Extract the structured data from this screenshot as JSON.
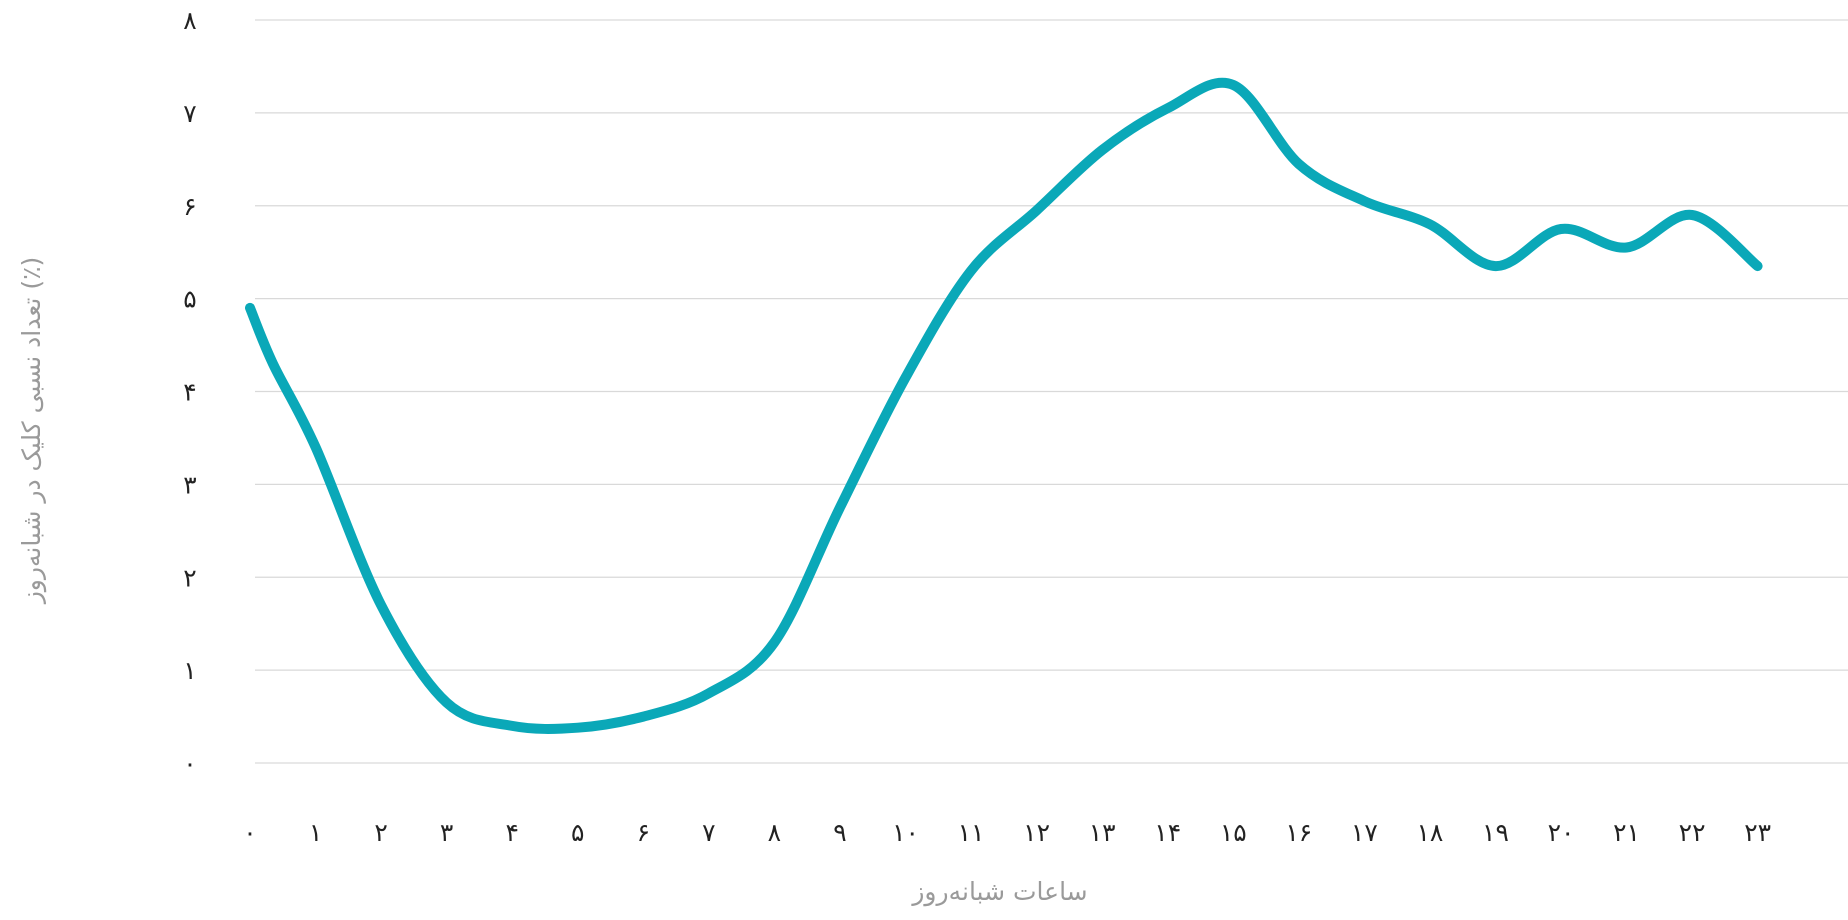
{
  "chart_data": {
    "type": "line",
    "title": "",
    "xlabel": "ساعات شبانه‌روز",
    "ylabel": "تعداد نسبی کلیک در شبانه‌روز (٪)",
    "x_tick_labels": [
      "۰",
      "۱",
      "۲",
      "۳",
      "۴",
      "۵",
      "۶",
      "۷",
      "۸",
      "۹",
      "۱۰",
      "۱۱",
      "۱۲",
      "۱۳",
      "۱۴",
      "۱۵",
      "۱۶",
      "۱۷",
      "۱۸",
      "۱۹",
      "۲۰",
      "۲۱",
      "۲۲",
      "۲۳"
    ],
    "y_tick_labels": [
      "۰",
      "۱",
      "۲",
      "۳",
      "۴",
      "۵",
      "۶",
      "۷",
      "۸"
    ],
    "ylim": [
      0,
      8
    ],
    "grid": true,
    "series": [
      {
        "color": "#0aa8b8",
        "x": [
          0,
          0.35,
          1,
          2,
          3,
          4,
          5,
          6,
          7,
          8,
          9,
          10,
          11,
          12,
          13,
          14,
          15,
          16,
          17,
          18,
          19,
          20,
          21,
          22,
          23
        ],
        "y": [
          4.9,
          4.3,
          3.4,
          1.7,
          0.65,
          0.4,
          0.38,
          0.5,
          0.75,
          1.3,
          2.75,
          4.15,
          5.3,
          5.95,
          6.6,
          7.05,
          7.3,
          6.45,
          6.05,
          5.8,
          5.35,
          5.75,
          5.55,
          5.9,
          5.35
        ]
      }
    ]
  }
}
